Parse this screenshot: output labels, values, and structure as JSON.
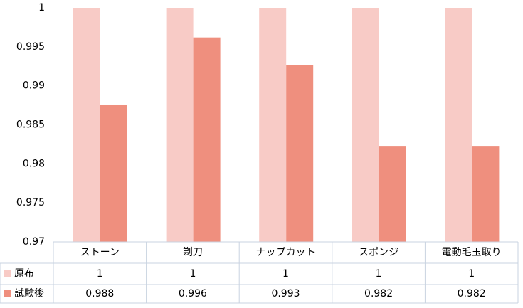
{
  "chart_data": {
    "type": "bar",
    "categories": [
      "ストーン",
      "剃刀",
      "ナップカット",
      "スポンジ",
      "電動毛玉取り"
    ],
    "series": [
      {
        "name": "原布",
        "color": "#f8cbc6",
        "values": [
          1,
          1,
          1,
          1,
          1
        ]
      },
      {
        "name": "試験後",
        "color": "#ef8f7e",
        "values": [
          0.9876,
          0.9962,
          0.9927,
          0.9823,
          0.9823
        ],
        "value_labels": [
          "0.988",
          "0.996",
          "0.993",
          "0.982",
          "0.982"
        ]
      }
    ],
    "ylim": [
      0.97,
      1
    ],
    "yticks": [
      0.97,
      0.975,
      0.98,
      0.985,
      0.99,
      0.995,
      1
    ],
    "grid": false
  }
}
